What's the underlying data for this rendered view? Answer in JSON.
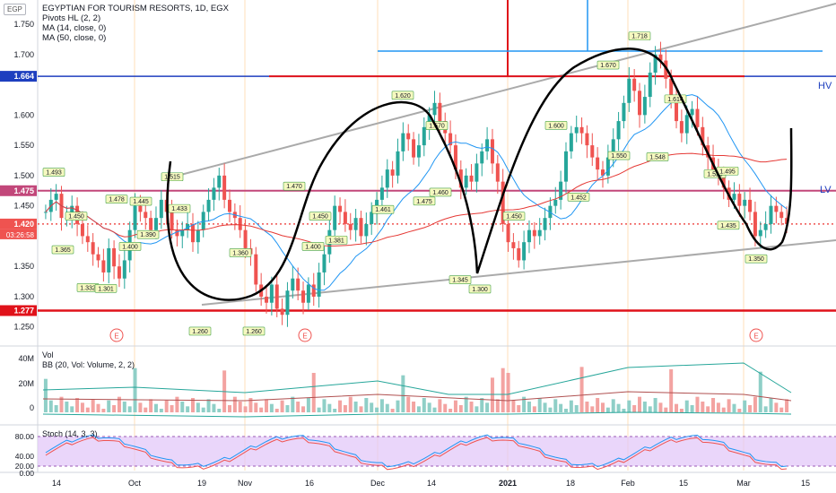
{
  "header": {
    "symbol_title": "EGYPTIAN FOR TOURISM RESORTS, 1D, EGX",
    "currency_badge": "EGP",
    "indicators": [
      "Pivots HL (2, 2)",
      "MA (14, close, 0)",
      "MA (50, close, 0)"
    ]
  },
  "price_axis": {
    "ticks": [
      "1.750",
      "1.700",
      "1.600",
      "1.550",
      "1.500",
      "1.450",
      "1.400",
      "1.350",
      "1.300",
      "1.250"
    ],
    "labels": {
      "level_hv": "1.664",
      "level_top_pink": "1.475",
      "current": "1.420",
      "countdown": "03:26:58",
      "level_low_red": "1.277"
    }
  },
  "annotations": {
    "hv": "HV",
    "lv": "LV",
    "earnings_marker": "E"
  },
  "pivot_labels": [
    "1.493",
    "1.450",
    "1.365",
    "1.332",
    "1.301",
    "1.478",
    "1.445",
    "1.400",
    "1.390",
    "1.515",
    "1.433",
    "1.260",
    "1.360",
    "1.260",
    "1.470",
    "1.400",
    "1.381",
    "1.450",
    "1.620",
    "1.461",
    "1.570",
    "1.475",
    "1.460",
    "1.345",
    "1.300",
    "1.450",
    "1.452",
    "1.600",
    "1.670",
    "1.550",
    "1.718",
    "1.548",
    "1.614",
    "1.520",
    "1.495",
    "1.435",
    "1.350"
  ],
  "time_axis": [
    "14",
    "Oct",
    "19",
    "Nov",
    "16",
    "Dec",
    "14",
    "2021",
    "18",
    "Feb",
    "15",
    "Mar",
    "15"
  ],
  "volume_pane": {
    "title": "Vol",
    "bb": "BB (20, Vol: Volume, 2, 2)",
    "ticks": [
      "40M",
      "20M",
      "0"
    ]
  },
  "stoch_pane": {
    "title": "Stoch (14, 3, 3)",
    "ticks": [
      "80.00",
      "40.00",
      "20.00",
      "0.00"
    ]
  },
  "colors": {
    "up": "#26a69a",
    "down": "#ef5350",
    "hv_line": "#1e3fbf",
    "red_line": "#e0121a",
    "lv_band": "#c2477a",
    "ma14": "#2196f3",
    "ma50": "#e53935",
    "trend": "#aaaaaa",
    "stoch_fill": "#e1c4f8",
    "month_grid": "#ffdfb8"
  },
  "chart_data": {
    "type": "candlestick",
    "title": "EGYPTIAN FOR TOURISM RESORTS, 1D, EGX",
    "y_range": [
      1.22,
      1.79
    ],
    "horizontal_levels": {
      "hv": 1.664,
      "upper_band": 1.475,
      "current": 1.42,
      "support": 1.277
    },
    "close_series": [
      1.44,
      1.46,
      1.47,
      1.43,
      1.43,
      1.45,
      1.42,
      1.4,
      1.39,
      1.37,
      1.36,
      1.34,
      1.38,
      1.35,
      1.33,
      1.36,
      1.41,
      1.45,
      1.44,
      1.43,
      1.41,
      1.43,
      1.46,
      1.44,
      1.41,
      1.4,
      1.41,
      1.42,
      1.39,
      1.41,
      1.44,
      1.46,
      1.48,
      1.5,
      1.46,
      1.44,
      1.43,
      1.41,
      1.38,
      1.37,
      1.32,
      1.3,
      1.29,
      1.32,
      1.28,
      1.27,
      1.31,
      1.33,
      1.31,
      1.29,
      1.32,
      1.3,
      1.34,
      1.37,
      1.41,
      1.45,
      1.44,
      1.42,
      1.41,
      1.43,
      1.4,
      1.42,
      1.44,
      1.46,
      1.48,
      1.51,
      1.5,
      1.54,
      1.57,
      1.56,
      1.53,
      1.55,
      1.58,
      1.6,
      1.62,
      1.59,
      1.57,
      1.55,
      1.51,
      1.48,
      1.5,
      1.49,
      1.52,
      1.54,
      1.56,
      1.52,
      1.49,
      1.42,
      1.39,
      1.38,
      1.36,
      1.39,
      1.41,
      1.4,
      1.41,
      1.43,
      1.45,
      1.46,
      1.49,
      1.54,
      1.57,
      1.58,
      1.57,
      1.55,
      1.53,
      1.51,
      1.5,
      1.53,
      1.56,
      1.59,
      1.62,
      1.66,
      1.64,
      1.6,
      1.63,
      1.67,
      1.7,
      1.69,
      1.66,
      1.63,
      1.59,
      1.57,
      1.6,
      1.61,
      1.58,
      1.55,
      1.53,
      1.51,
      1.5,
      1.48,
      1.46,
      1.47,
      1.45,
      1.46,
      1.44,
      1.4,
      1.41,
      1.42,
      1.45,
      1.44,
      1.43,
      1.42
    ]
  }
}
